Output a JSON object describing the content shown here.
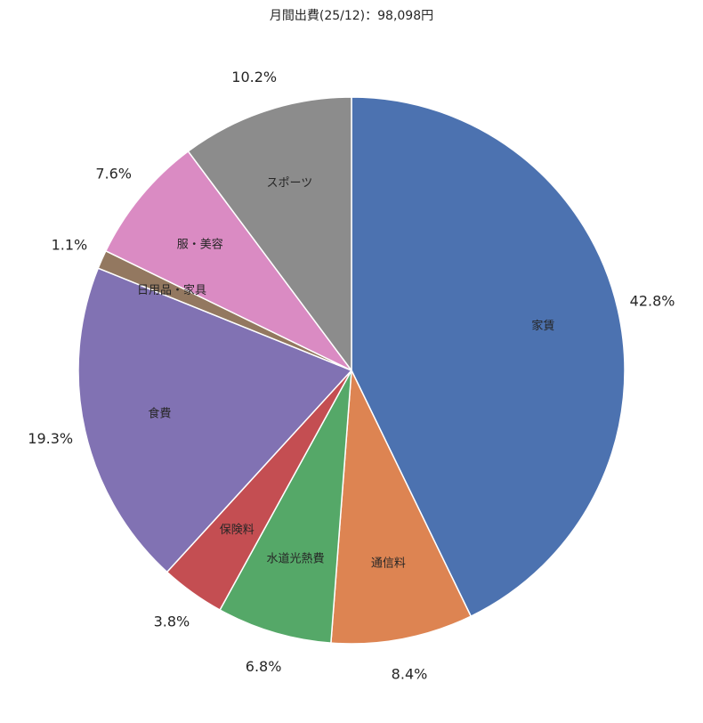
{
  "chart_data": {
    "type": "pie",
    "title": "月間出費(25/12)：98,098円",
    "categories": [
      "家賃",
      "通信料",
      "水道光熱費",
      "保険料",
      "食費",
      "日用品・家具",
      "服・美容",
      "スポーツ"
    ],
    "values": [
      42.8,
      8.4,
      6.8,
      3.8,
      19.3,
      1.1,
      7.6,
      10.2
    ],
    "value_labels": [
      "42.8%",
      "8.4%",
      "6.8%",
      "3.8%",
      "19.3%",
      "1.1%",
      "7.6%",
      "10.2%"
    ],
    "colors": [
      "#4c72b0",
      "#dd8452",
      "#55a868",
      "#c44e52",
      "#8172b3",
      "#937860",
      "#da8bc3",
      "#8c8c8c"
    ],
    "start_angle": "top",
    "direction": "clockwise"
  }
}
